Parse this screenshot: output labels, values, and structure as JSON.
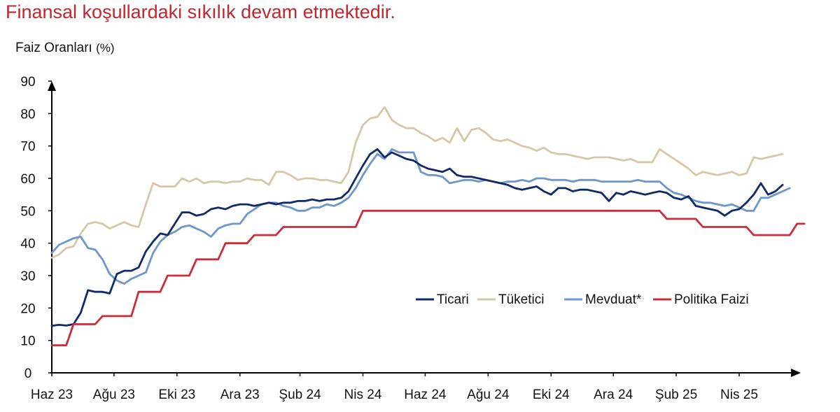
{
  "title": "Finansal koşullardaki sıkılık devam etmektedir.",
  "ylabel_main": "Faiz Oranları",
  "ylabel_unit": "(%)",
  "chart_data": {
    "type": "line",
    "title": "Finansal koşullardaki sıkılık devam etmektedir.",
    "ylabel": "Faiz Oranları (%)",
    "ylim": [
      0,
      90
    ],
    "yticks": [
      0,
      10,
      20,
      30,
      40,
      50,
      60,
      70,
      80,
      90
    ],
    "xticks": [
      "Haz 23",
      "Ağu 23",
      "Eki 23",
      "Ara 23",
      "Şub 24",
      "Nis 24",
      "Haz 24",
      "Ağu 24",
      "Eki 24",
      "Ara 24",
      "Şub 25",
      "Nis 25"
    ],
    "xtick_weeks": [
      0,
      8.6,
      17.3,
      26,
      34.3,
      43,
      51.6,
      60.3,
      69,
      77.6,
      86.3,
      95
    ],
    "x_period": "weekly, June 2023 – May 2025",
    "grid": false,
    "legend_position": "inside-right",
    "series": [
      {
        "name": "Ticari",
        "color": "#0f2a66",
        "values": [
          14.5,
          14.8,
          14.6,
          15,
          18.5,
          25.5,
          25,
          25,
          24.5,
          30.5,
          31.5,
          31.5,
          32.5,
          37.5,
          40.5,
          43,
          42.5,
          46,
          49.5,
          49.5,
          48.5,
          49,
          50.5,
          51,
          50.5,
          51.5,
          52,
          52,
          51.5,
          52,
          52.5,
          52,
          52.5,
          52.5,
          53,
          53,
          53.5,
          53,
          53.5,
          53.5,
          54,
          56,
          60,
          64,
          67.5,
          69,
          66.5,
          68,
          67,
          66,
          65.5,
          64,
          63,
          62.5,
          62,
          63,
          61,
          60.5,
          60.5,
          60,
          59.5,
          59,
          58.5,
          58,
          57,
          56.5,
          57,
          57.5,
          56,
          55,
          57,
          57,
          56,
          56.5,
          56.5,
          56,
          55.5,
          53,
          55.5,
          55,
          56,
          55.5,
          55,
          55.5,
          56,
          55.5,
          54,
          53.5,
          54.5,
          51.5,
          51,
          50.5,
          50,
          48.5,
          50,
          50.5,
          52.5,
          55,
          58.5,
          55,
          56,
          58
        ]
      },
      {
        "name": "Tüketici",
        "color": "#d4c8a8",
        "values": [
          35.5,
          36.5,
          38.5,
          39,
          43,
          46,
          46.5,
          46,
          44.5,
          45.5,
          46.5,
          45.5,
          45,
          52,
          58.5,
          57.5,
          57.5,
          57.5,
          60,
          59,
          60,
          58.5,
          59,
          59,
          58.5,
          59,
          59,
          60,
          59.5,
          59.5,
          58,
          62,
          62,
          61,
          59.5,
          60,
          60,
          59.5,
          59.5,
          59,
          58.5,
          62,
          71,
          76.5,
          78.5,
          79,
          82,
          78,
          76.5,
          75.5,
          75.5,
          74,
          73,
          71.5,
          72.5,
          71,
          75.5,
          71.5,
          75,
          75.5,
          74,
          72,
          71.5,
          72,
          71,
          70,
          69.5,
          68.5,
          69.5,
          68,
          67.5,
          67.5,
          67,
          66.5,
          66,
          66.5,
          66.5,
          66.5,
          66,
          65.5,
          66,
          65,
          65,
          65,
          69,
          67.5,
          66,
          64.5,
          63,
          61,
          62,
          61.5,
          61,
          61.5,
          62,
          61,
          61.5,
          66.5,
          66,
          66.5,
          67,
          67.5
        ]
      },
      {
        "name": "Mevduat*",
        "color": "#6f96cc",
        "values": [
          37,
          39.5,
          40.5,
          41.5,
          42,
          38.5,
          38,
          35,
          30.5,
          28.5,
          27.5,
          29,
          30,
          31,
          37,
          40.5,
          42.5,
          43.5,
          45,
          45.5,
          44.5,
          43.5,
          42,
          44.5,
          45.5,
          46,
          46,
          49,
          50.5,
          52,
          52.5,
          52.5,
          51.5,
          51,
          50,
          50,
          51,
          51,
          52,
          51.5,
          52.5,
          54,
          57,
          61,
          64.5,
          67.5,
          66,
          69,
          68,
          68,
          68,
          62,
          61,
          61,
          60.5,
          58.5,
          59,
          59.5,
          59.5,
          59,
          59.5,
          59,
          58.5,
          59,
          59,
          59.5,
          59,
          60,
          60,
          59.5,
          59.5,
          59.5,
          59,
          59.5,
          59.5,
          59.5,
          59,
          59,
          59,
          59,
          59,
          59.5,
          59,
          59,
          59,
          57,
          55.5,
          55,
          54,
          53,
          52.5,
          52.5,
          52,
          51.5,
          52,
          51,
          50,
          50,
          54,
          54,
          55,
          56,
          57
        ]
      },
      {
        "name": "Politika Faizi",
        "color": "#cc2b3a",
        "values": [
          8.5,
          8.5,
          8.5,
          15,
          15,
          15,
          15,
          17.5,
          17.5,
          17.5,
          17.5,
          17.5,
          25,
          25,
          25,
          25,
          30,
          30,
          30,
          30,
          35,
          35,
          35,
          35,
          40,
          40,
          40,
          40,
          42.5,
          42.5,
          42.5,
          42.5,
          45,
          45,
          45,
          45,
          45,
          45,
          45,
          45,
          45,
          45,
          45,
          50,
          50,
          50,
          50,
          50,
          50,
          50,
          50,
          50,
          50,
          50,
          50,
          50,
          50,
          50,
          50,
          50,
          50,
          50,
          50,
          50,
          50,
          50,
          50,
          50,
          50,
          50,
          50,
          50,
          50,
          50,
          50,
          50,
          50,
          50,
          50,
          50,
          50,
          50,
          50,
          50,
          50,
          47.5,
          47.5,
          47.5,
          47.5,
          47.5,
          45,
          45,
          45,
          45,
          45,
          45,
          45,
          42.5,
          42.5,
          42.5,
          42.5,
          42.5,
          42.5,
          46,
          46
        ]
      }
    ]
  }
}
